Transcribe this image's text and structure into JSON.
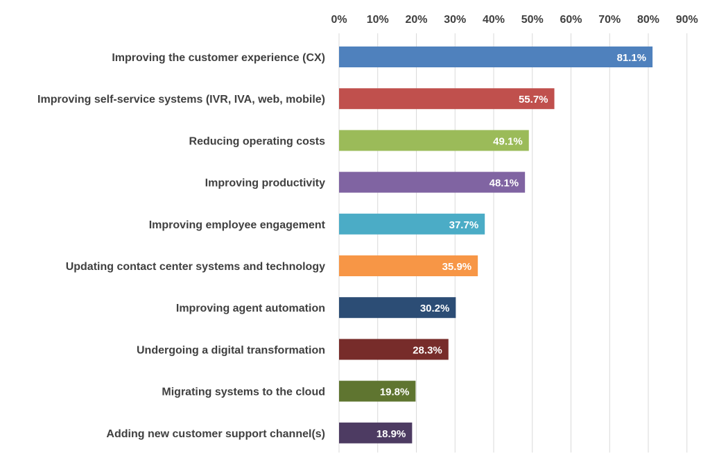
{
  "chart_data": {
    "type": "bar",
    "orientation": "horizontal",
    "categories": [
      "Improving the customer experience (CX)",
      "Improving self-service systems (IVR, IVA, web, mobile)",
      "Reducing operating costs",
      "Improving productivity",
      "Improving employee engagement",
      "Updating contact center systems and technology",
      "Improving agent automation",
      "Undergoing a digital transformation",
      "Migrating systems to the cloud",
      "Adding new customer support channel(s)"
    ],
    "values": [
      81.1,
      55.7,
      49.1,
      48.1,
      37.7,
      35.9,
      30.2,
      28.3,
      19.8,
      18.9
    ],
    "data_labels": [
      "81.1%",
      "55.7%",
      "49.1%",
      "48.1%",
      "37.7%",
      "35.9%",
      "30.2%",
      "28.3%",
      "19.8%",
      "18.9%"
    ],
    "bar_colors": [
      "#4f81bd",
      "#c0504d",
      "#9bbb59",
      "#8064a2",
      "#4bacc6",
      "#f79646",
      "#2c4d75",
      "#772c2a",
      "#5f7530",
      "#4d3b62"
    ],
    "x_ticks": [
      "0%",
      "10%",
      "20%",
      "30%",
      "40%",
      "50%",
      "60%",
      "70%",
      "80%",
      "90%"
    ],
    "xlim": [
      0,
      90
    ],
    "x_axis_position": "top",
    "grid": true,
    "legend": "none"
  }
}
